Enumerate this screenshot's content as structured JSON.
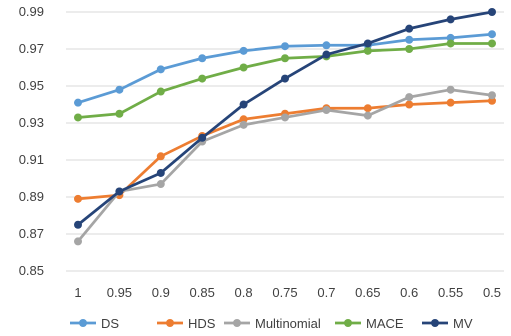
{
  "chart_data": {
    "type": "line",
    "title": "",
    "xlabel": "",
    "ylabel": "",
    "categories": [
      "1",
      "0.95",
      "0.9",
      "0.85",
      "0.8",
      "0.75",
      "0.7",
      "0.65",
      "0.6",
      "0.55",
      "0.5"
    ],
    "ylim": [
      0.85,
      0.99
    ],
    "yticks": [
      "0.85",
      "0.87",
      "0.89",
      "0.91",
      "0.93",
      "0.95",
      "0.97",
      "0.99"
    ],
    "grid": true,
    "legend_position": "bottom",
    "series": [
      {
        "name": "DS",
        "color": "#5B9BD5",
        "values": [
          0.941,
          0.948,
          0.959,
          0.965,
          0.969,
          0.9715,
          0.972,
          0.972,
          0.975,
          0.976,
          0.978
        ]
      },
      {
        "name": "HDS",
        "color": "#ED7D31",
        "values": [
          0.889,
          0.891,
          0.912,
          0.923,
          0.932,
          0.935,
          0.938,
          0.938,
          0.94,
          0.941,
          0.942
        ]
      },
      {
        "name": "Multinomial",
        "color": "#A5A5A5",
        "values": [
          0.866,
          0.893,
          0.897,
          0.92,
          0.929,
          0.933,
          0.937,
          0.934,
          0.944,
          0.948,
          0.945
        ]
      },
      {
        "name": "MACE",
        "color": "#70AD47",
        "values": [
          0.933,
          0.935,
          0.947,
          0.954,
          0.96,
          0.965,
          0.966,
          0.969,
          0.97,
          0.973,
          0.973
        ]
      },
      {
        "name": "MV",
        "color": "#264478",
        "values": [
          0.875,
          0.893,
          0.903,
          0.922,
          0.94,
          0.954,
          0.967,
          0.973,
          0.981,
          0.986,
          0.99
        ]
      }
    ]
  }
}
